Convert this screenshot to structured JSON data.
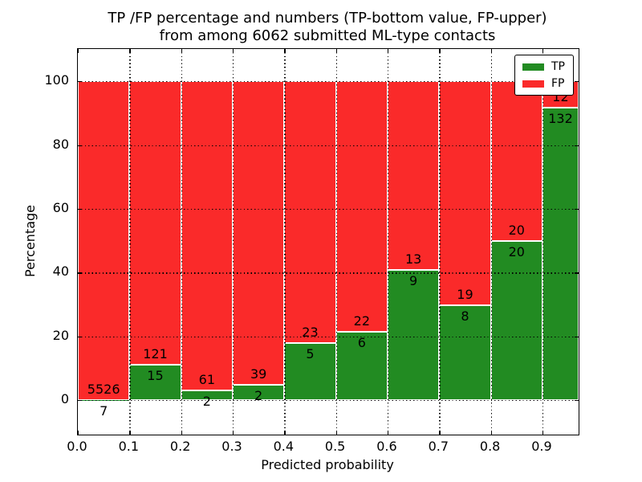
{
  "chart_data": {
    "type": "bar",
    "stacked": true,
    "title_line1": "TP /FP percentage and numbers (TP-bottom value, FP-upper)",
    "title_line2": "from among 6062 submitted ML-type contacts",
    "xlabel": "Predicted probability",
    "ylabel": "Percentage",
    "bin_edges": [
      0.0,
      0.1,
      0.2,
      0.3,
      0.4,
      0.5,
      0.6,
      0.7,
      0.8,
      0.9,
      1.0
    ],
    "series": [
      {
        "name": "TP",
        "color": "#228b22",
        "counts": [
          7,
          15,
          2,
          2,
          5,
          6,
          9,
          8,
          20,
          132
        ]
      },
      {
        "name": "FP",
        "color": "#fa2a2a",
        "counts": [
          5526,
          121,
          61,
          39,
          23,
          22,
          13,
          19,
          20,
          12
        ]
      }
    ],
    "tp_percent_by_bin": [
      0.1,
      11.0,
      3.2,
      4.9,
      17.9,
      21.4,
      40.9,
      29.6,
      50.0,
      91.7
    ],
    "x_tick_labels": [
      "0.0",
      "0.1",
      "0.2",
      "0.3",
      "0.4",
      "0.5",
      "0.6",
      "0.7",
      "0.8",
      "0.9"
    ],
    "x_tick_values": [
      0.0,
      0.1,
      0.2,
      0.3,
      0.4,
      0.5,
      0.6,
      0.7,
      0.8,
      0.9
    ],
    "y_tick_labels": [
      "0",
      "20",
      "40",
      "60",
      "80",
      "100"
    ],
    "y_tick_values": [
      0,
      20,
      40,
      60,
      80,
      100
    ],
    "xlim": [
      0.0,
      0.97
    ],
    "ylim": [
      -10.8,
      110.1
    ],
    "grid": true,
    "legend": {
      "position": "upper right",
      "entries": [
        {
          "label": "TP",
          "color": "#228b22"
        },
        {
          "label": "FP",
          "color": "#fa2a2a"
        }
      ]
    }
  }
}
